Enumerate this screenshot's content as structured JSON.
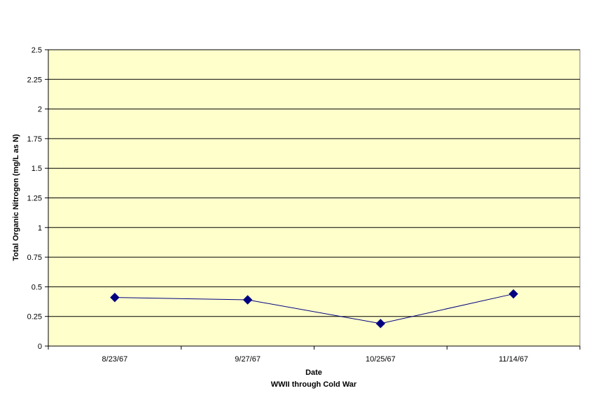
{
  "chart_data": {
    "type": "line",
    "title": "",
    "xlabel": "Date",
    "xlabel_sub": "WWII through Cold War",
    "ylabel": "Total Organic Nitrogen (mg/L as N)",
    "categories": [
      "8/23/67",
      "9/27/67",
      "10/25/67",
      "11/14/67"
    ],
    "series": [
      {
        "values": [
          0.41,
          0.39,
          0.19,
          0.44
        ]
      }
    ],
    "ylim": [
      0,
      2.5
    ],
    "yticks": [
      "0",
      "0.25",
      "0.5",
      "0.75",
      "1",
      "1.25",
      "1.5",
      "1.75",
      "2",
      "2.25",
      "2.5"
    ],
    "grid": true,
    "legend": "none",
    "colors": {
      "plot_background": "#ffffcc",
      "series_line": "#000080",
      "marker": "#000080",
      "gridline": "#000000"
    }
  }
}
